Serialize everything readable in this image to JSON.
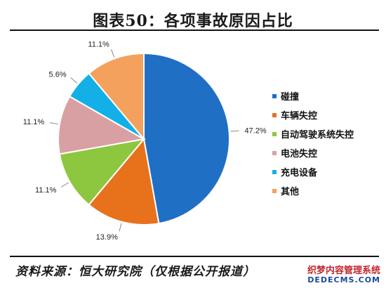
{
  "header": {
    "title": "图表50：各项事故原因占比"
  },
  "footer": {
    "source": "资料来源：恒大研究院（仅根据公开报道）"
  },
  "watermark": {
    "line1": "织梦内容管理系统",
    "line2": "DEDECMS.COM"
  },
  "chart_data": {
    "type": "pie",
    "title": "图表50：各项事故原因占比",
    "legend_position": "right",
    "slices": [
      {
        "label": "碰撞",
        "value": 47.2,
        "value_label": "47.2%",
        "color": "#1f6fc5"
      },
      {
        "label": "车辆失控",
        "value": 13.9,
        "value_label": "13.9%",
        "color": "#e8711c"
      },
      {
        "label": "自动驾驶系统失控",
        "value": 11.1,
        "value_label": "11.1%",
        "color": "#8dc63f"
      },
      {
        "label": "电池失控",
        "value": 11.1,
        "value_label": "11.1%",
        "color": "#d9a0a3"
      },
      {
        "label": "充电设备",
        "value": 5.6,
        "value_label": "5.6%",
        "color": "#12b0e6"
      },
      {
        "label": "其他",
        "value": 11.1,
        "value_label": "11.1%",
        "color": "#f4a15d"
      }
    ]
  }
}
